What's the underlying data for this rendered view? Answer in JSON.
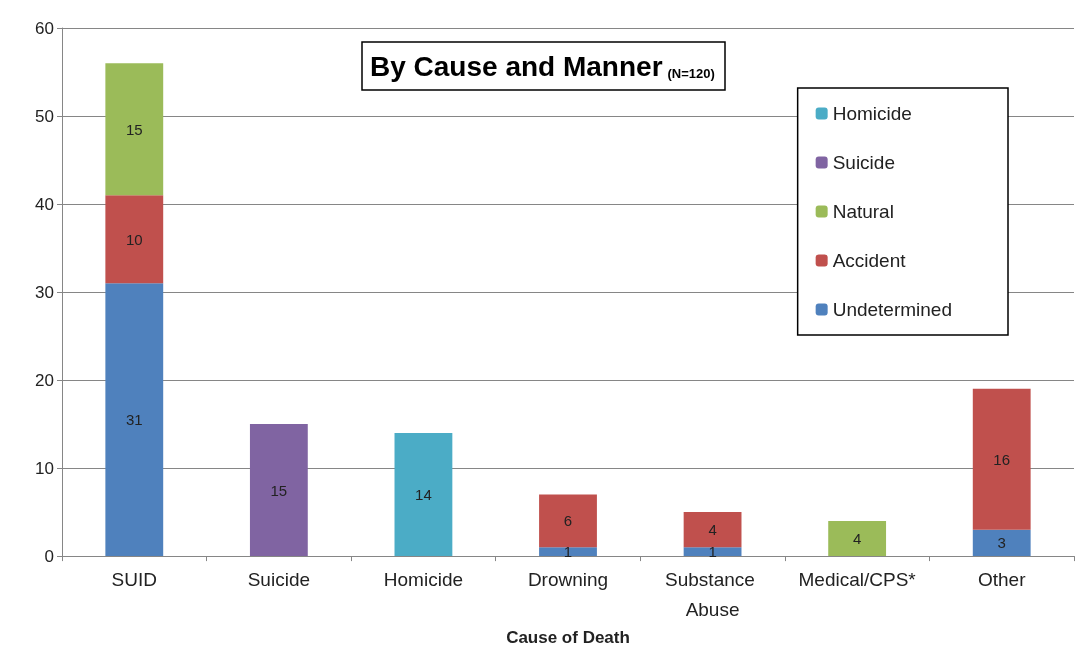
{
  "chart_data": {
    "type": "bar",
    "title": "By Cause and Manner",
    "subtitle": "(N=120)",
    "xlabel": "Cause of Death",
    "categories": [
      "SUID",
      "Suicide",
      "Homicide",
      "Drowning",
      "Substance Abuse",
      "Medical/CPS*",
      "Other"
    ],
    "stacked": true,
    "data_labels": true,
    "grid": "y",
    "legend": "top right",
    "ylim": [
      0,
      60
    ],
    "yticks": [
      0,
      10,
      20,
      30,
      40,
      50,
      60
    ],
    "series": [
      {
        "name": "Undetermined",
        "color": "#4f81bd",
        "values": [
          31,
          null,
          null,
          1,
          1,
          null,
          3
        ]
      },
      {
        "name": "Accident",
        "color": "#c0504d",
        "values": [
          10,
          null,
          null,
          6,
          4,
          null,
          16
        ]
      },
      {
        "name": "Natural",
        "color": "#9bbb59",
        "values": [
          15,
          null,
          null,
          null,
          null,
          4,
          null
        ]
      },
      {
        "name": "Suicide",
        "color": "#8064a2",
        "values": [
          null,
          15,
          null,
          null,
          null,
          null,
          null
        ]
      },
      {
        "name": "Homicide",
        "color": "#4bacc6",
        "values": [
          null,
          null,
          14,
          null,
          null,
          null,
          null
        ]
      }
    ]
  }
}
